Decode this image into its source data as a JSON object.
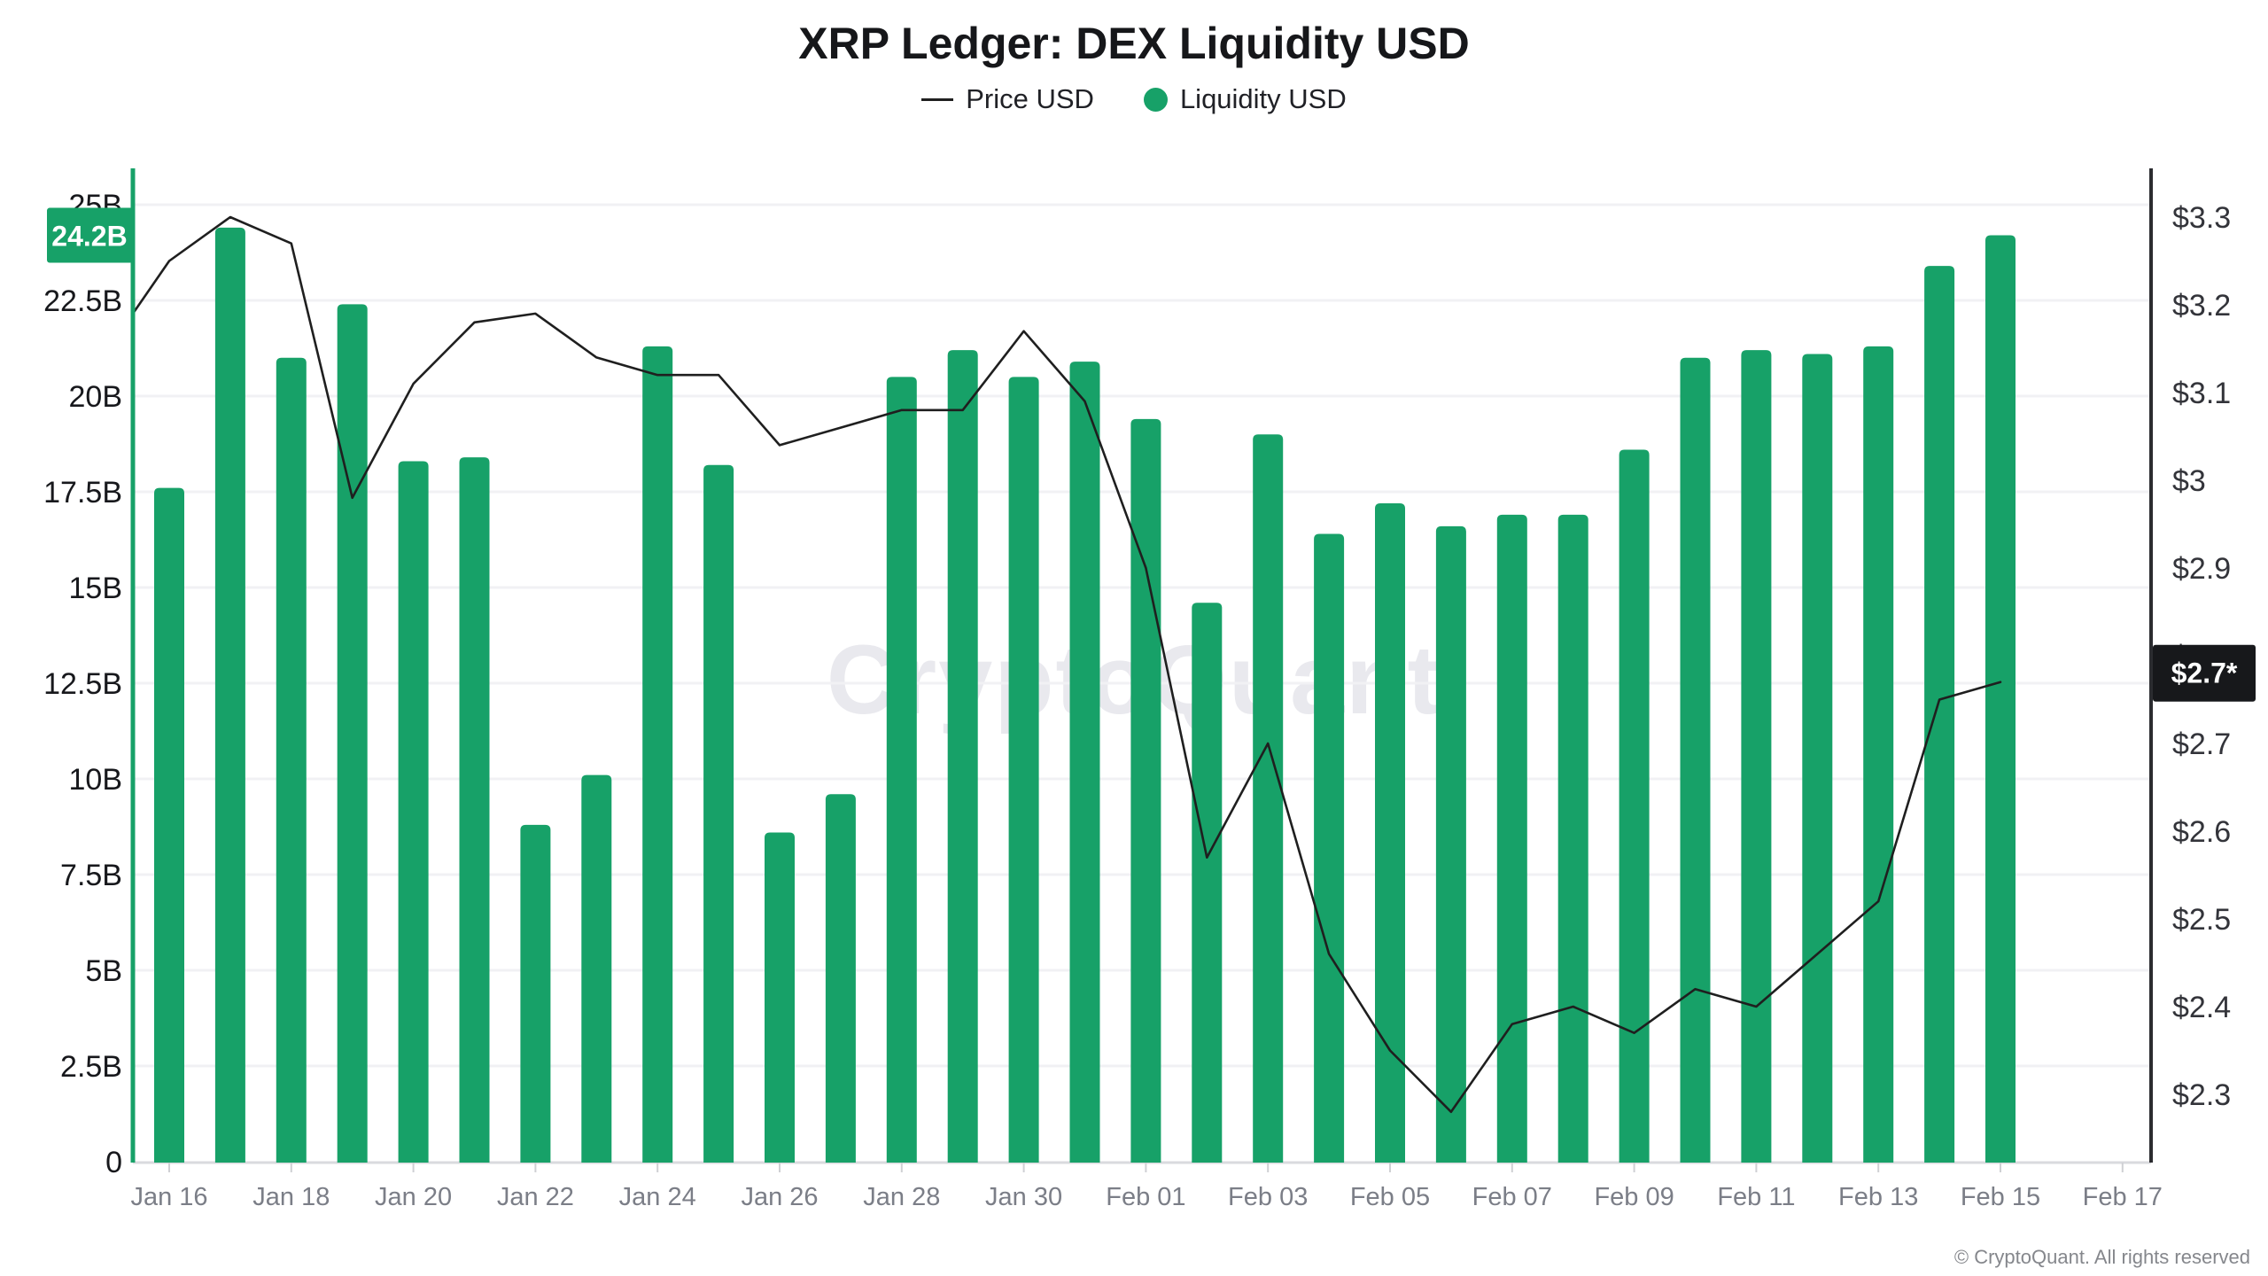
{
  "title": "XRP Ledger: DEX Liquidity USD",
  "legend": {
    "items": [
      {
        "label": "Price USD",
        "swatch": "line"
      },
      {
        "label": "Liquidity USD",
        "swatch": "dot"
      }
    ]
  },
  "watermark": "CryptoQuant",
  "footer": "© CryptoQuant. All rights reserved",
  "badges": {
    "liquidity_latest": "24.2B",
    "price_latest": "$2.7*"
  },
  "colors": {
    "bar": "#17a168",
    "line": "#1f1f1f",
    "left_axis_line": "#17a168",
    "right_axis_line": "#2b2c30",
    "grid": "#f1f1f4",
    "baseline": "#d9dade",
    "tick": "#cfd0d4",
    "date_label": "#7b7e87",
    "left_label": "#17181c",
    "right_label": "#33343a",
    "badge_green_bg": "#17a168",
    "badge_black_bg": "#17181b",
    "badge_text": "#ffffff",
    "watermark_text": "#e9e9ee",
    "footer_text": "#85878c"
  },
  "chart_data": {
    "type": "bar",
    "title": "XRP Ledger: DEX Liquidity USD",
    "subtitle": "",
    "legend_position": "top",
    "grid": "horizontal",
    "categories": [
      "Jan 16",
      "Jan 17",
      "Jan 18",
      "Jan 19",
      "Jan 20",
      "Jan 21",
      "Jan 22",
      "Jan 23",
      "Jan 24",
      "Jan 25",
      "Jan 26",
      "Jan 27",
      "Jan 28",
      "Jan 29",
      "Jan 30",
      "Jan 31",
      "Feb 01",
      "Feb 02",
      "Feb 03",
      "Feb 04",
      "Feb 05",
      "Feb 06",
      "Feb 07",
      "Feb 08",
      "Feb 09",
      "Feb 10",
      "Feb 11",
      "Feb 12",
      "Feb 13",
      "Feb 14",
      "Feb 15"
    ],
    "series": [
      {
        "name": "Liquidity USD",
        "type": "bar",
        "y_axis": "left",
        "unit": "billions USD",
        "values": [
          17.6,
          24.4,
          21.0,
          22.4,
          18.3,
          18.4,
          8.8,
          10.1,
          21.3,
          18.2,
          8.6,
          9.6,
          20.5,
          21.2,
          20.5,
          20.9,
          19.4,
          14.6,
          19.0,
          16.4,
          17.2,
          16.6,
          16.9,
          16.9,
          18.6,
          21.0,
          21.2,
          21.1,
          21.3,
          23.4,
          24.2
        ]
      },
      {
        "name": "Price USD",
        "type": "line",
        "y_axis": "right",
        "unit": "USD",
        "edge_entry_price": 3.19,
        "values": [
          3.25,
          3.3,
          3.27,
          2.98,
          3.11,
          3.18,
          3.19,
          3.14,
          3.12,
          3.12,
          3.04,
          3.06,
          3.08,
          3.08,
          3.17,
          3.09,
          2.9,
          2.57,
          2.7,
          2.46,
          2.35,
          2.28,
          2.38,
          2.4,
          2.37,
          2.42,
          2.4,
          2.46,
          2.52,
          2.75,
          2.77
        ]
      }
    ],
    "left_axis": {
      "min": 0,
      "max": 25,
      "unit": "B",
      "tick_values": [
        0,
        2.5,
        5,
        7.5,
        10,
        12.5,
        15,
        17.5,
        20,
        22.5,
        25
      ],
      "tick_labels": [
        "0",
        "2.5B",
        "5B",
        "7.5B",
        "10B",
        "12.5B",
        "15B",
        "17.5B",
        "20B",
        "22.5B",
        "25B"
      ]
    },
    "right_axis": {
      "min": 2.3,
      "max": 3.3,
      "unit": "$",
      "tick_values": [
        2.3,
        2.4,
        2.5,
        2.6,
        2.7,
        2.8,
        2.9,
        3.0,
        3.1,
        3.2,
        3.3
      ],
      "tick_labels": [
        "$2.3",
        "$2.4",
        "$2.5",
        "$2.6",
        "$2.7",
        "$2.8",
        "$2.9",
        "$3",
        "$3.1",
        "$3.2",
        "$3.3"
      ]
    },
    "x_axis": {
      "tick_every_days": 2,
      "visible_tick_labels": [
        "Jan 16",
        "Jan 18",
        "Jan 20",
        "Jan 22",
        "Jan 24",
        "Jan 26",
        "Jan 28",
        "Jan 30",
        "Feb 01",
        "Feb 03",
        "Feb 05",
        "Feb 07",
        "Feb 09",
        "Feb 11",
        "Feb 13",
        "Feb 15",
        "Feb 17"
      ]
    }
  }
}
